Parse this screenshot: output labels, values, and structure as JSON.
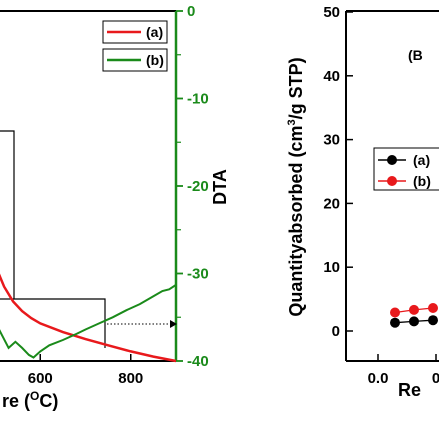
{
  "chart_data": [
    {
      "type": "line",
      "title": "",
      "xlabel": "re (",
      "xlabel_unit": "OC)",
      "xlabel_superscript": "O",
      "ylabel_right": "DTA",
      "x_ticks": [
        "600",
        "800"
      ],
      "y_right_ticks": [
        "0",
        "-10",
        "-20",
        "-30",
        "-40"
      ],
      "xlim": [
        500,
        900
      ],
      "ylim_right": [
        -40,
        0
      ],
      "legend": {
        "position": "top-right",
        "entries": [
          "(a)",
          "(b)"
        ]
      },
      "colors": {
        "a": "#e8191c",
        "b": "#1a8a1a",
        "right_axis": "#1a8a1a"
      },
      "series": [
        {
          "name": "(a)",
          "color": "#e8191c",
          "x": [
            500,
            520,
            540,
            560,
            580,
            600,
            650,
            700,
            750,
            800,
            850,
            900
          ],
          "y": [
            -29,
            -31.5,
            -33.2,
            -34.3,
            -35.1,
            -35.7,
            -36.7,
            -37.5,
            -38.2,
            -38.9,
            -39.5,
            -40
          ]
        },
        {
          "name": "(b)",
          "color": "#1a8a1a",
          "x": [
            500,
            515,
            530,
            545,
            560,
            575,
            585,
            600,
            620,
            650,
            680,
            700,
            730,
            760,
            790,
            820,
            850,
            870,
            885,
            900
          ],
          "y": [
            -35.5,
            -37,
            -38.5,
            -37.8,
            -38.5,
            -39.3,
            -39.6,
            -38.9,
            -38.2,
            -37.6,
            -36.9,
            -36.4,
            -35.7,
            -35.0,
            -34.2,
            -33.5,
            -32.6,
            -32.0,
            -31.8,
            -31.3
          ]
        }
      ]
    },
    {
      "type": "scatter",
      "title": "",
      "panel_label": "(B",
      "ylabel": "Quantityabsorbed (cm",
      "ylabel_unit": "/g STP)",
      "ylabel_superscript": "3",
      "xlabel": "Re",
      "x_ticks": [
        "0.0",
        "0"
      ],
      "y_ticks": [
        "0",
        "10",
        "20",
        "30",
        "40",
        "50"
      ],
      "ylim": [
        0,
        50
      ],
      "legend": {
        "position": "middle-right",
        "entries": [
          "(a)",
          "(b)"
        ]
      },
      "series": [
        {
          "name": "(a)",
          "color": "#000000",
          "x": [
            0.05,
            0.1,
            0.15
          ],
          "y": [
            1.3,
            1.5,
            1.7
          ]
        },
        {
          "name": "(b)",
          "color": "#e8191c",
          "x": [
            0.05,
            0.1,
            0.15
          ],
          "y": [
            2.9,
            3.3,
            3.6
          ]
        }
      ]
    }
  ]
}
